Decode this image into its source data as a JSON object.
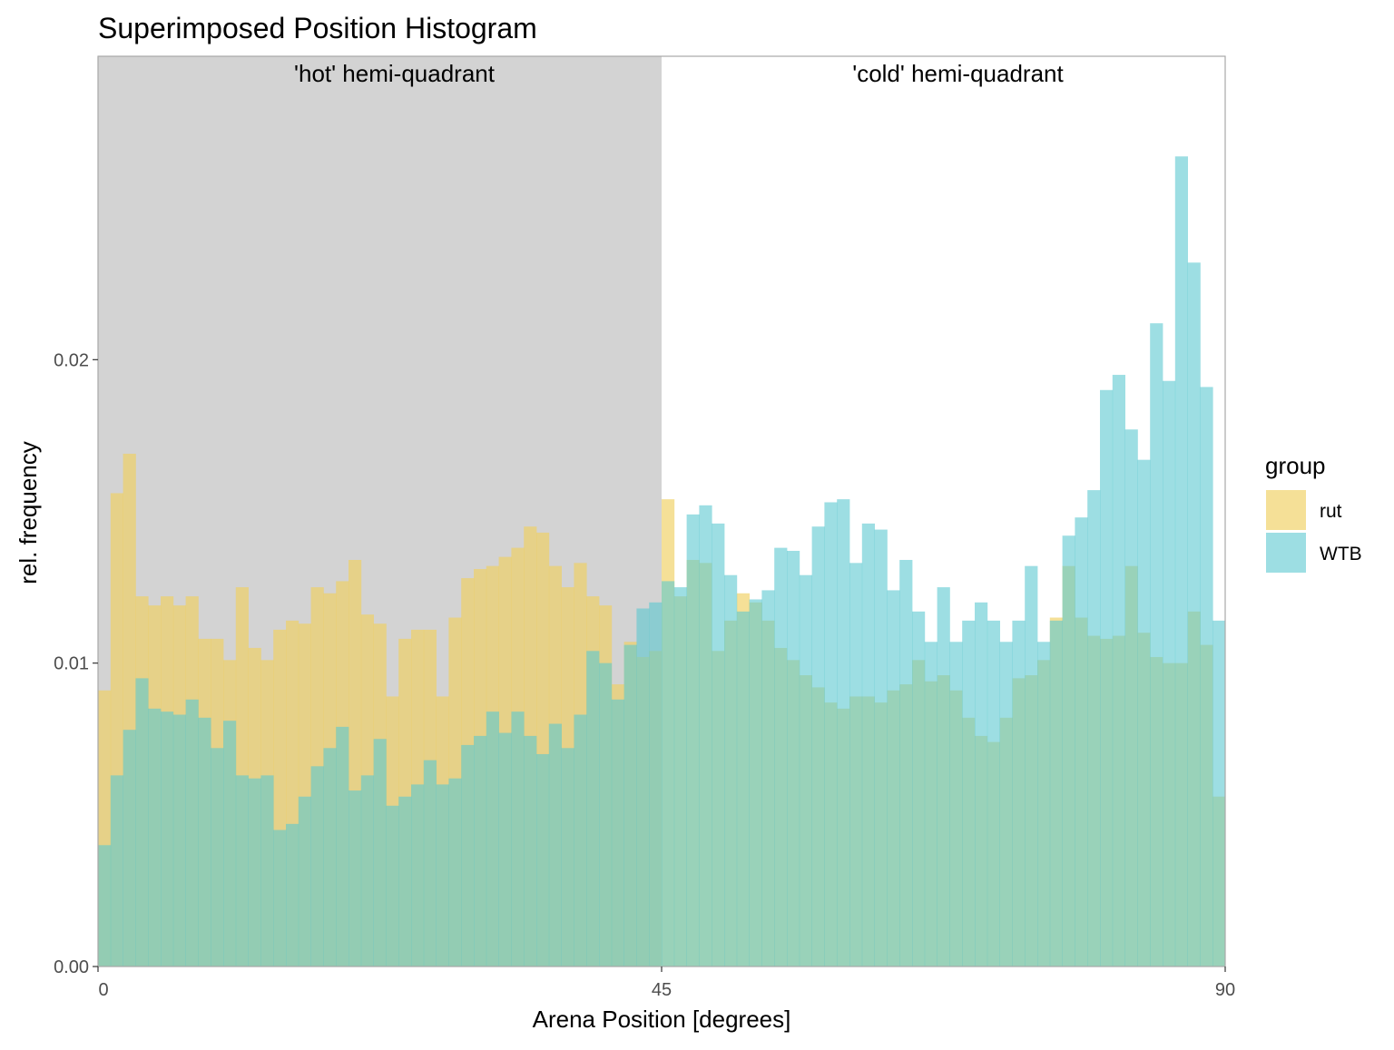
{
  "chart_data": {
    "type": "bar",
    "title": "Superimposed Position Histogram",
    "xlabel": "Arena Position [degrees]",
    "ylabel": "rel. frequency",
    "xlim": [
      0,
      90
    ],
    "ylim": [
      0,
      0.03
    ],
    "x_ticks": [
      {
        "value": 0,
        "label": "0"
      },
      {
        "value": 45,
        "label": "45"
      },
      {
        "value": 90,
        "label": "90"
      }
    ],
    "y_ticks": [
      {
        "value": 0.0,
        "label": "0.00"
      },
      {
        "value": 0.01,
        "label": "0.01"
      },
      {
        "value": 0.02,
        "label": "0.02"
      }
    ],
    "grid": false,
    "bin_width": 1,
    "bin_starts": [
      0,
      1,
      2,
      3,
      4,
      5,
      6,
      7,
      8,
      9,
      10,
      11,
      12,
      13,
      14,
      15,
      16,
      17,
      18,
      19,
      20,
      21,
      22,
      23,
      24,
      25,
      26,
      27,
      28,
      29,
      30,
      31,
      32,
      33,
      34,
      35,
      36,
      37,
      38,
      39,
      40,
      41,
      42,
      43,
      44,
      45,
      46,
      47,
      48,
      49,
      50,
      51,
      52,
      53,
      54,
      55,
      56,
      57,
      58,
      59,
      60,
      61,
      62,
      63,
      64,
      65,
      66,
      67,
      68,
      69,
      70,
      71,
      72,
      73,
      74,
      75,
      76,
      77,
      78,
      79,
      80,
      81,
      82,
      83,
      84,
      85,
      86,
      87,
      88,
      89
    ],
    "regions": [
      {
        "x_start": 0,
        "x_end": 45,
        "label": "'hot' hemi-quadrant",
        "fill": "#d3d3d3"
      },
      {
        "x_start": 45,
        "x_end": 90,
        "label": "'cold' hemi-quadrant",
        "fill": "#ffffff"
      }
    ],
    "legend": {
      "title": "group",
      "position": "right"
    },
    "series": [
      {
        "name": "rut",
        "color": "#f0d060",
        "values": [
          0.0091,
          0.0156,
          0.0169,
          0.0122,
          0.0119,
          0.0122,
          0.0119,
          0.0122,
          0.0108,
          0.0108,
          0.0101,
          0.0125,
          0.0105,
          0.0101,
          0.0111,
          0.0114,
          0.0113,
          0.0125,
          0.0123,
          0.0127,
          0.0134,
          0.0116,
          0.0113,
          0.0089,
          0.0108,
          0.0111,
          0.0111,
          0.0089,
          0.0115,
          0.0128,
          0.0131,
          0.0132,
          0.0135,
          0.0138,
          0.0145,
          0.0143,
          0.0132,
          0.0125,
          0.0133,
          0.0122,
          0.0119,
          0.0093,
          0.0107,
          0.0102,
          0.0104,
          0.0154,
          0.0122,
          0.0134,
          0.0133,
          0.0104,
          0.0114,
          0.0123,
          0.012,
          0.0114,
          0.0105,
          0.0101,
          0.0096,
          0.0092,
          0.0087,
          0.0085,
          0.0089,
          0.0089,
          0.0087,
          0.0091,
          0.0093,
          0.0101,
          0.0094,
          0.0096,
          0.0091,
          0.0082,
          0.0076,
          0.0074,
          0.0082,
          0.0095,
          0.0096,
          0.0101,
          0.0115,
          0.0132,
          0.0115,
          0.0109,
          0.0108,
          0.0109,
          0.0132,
          0.011,
          0.0102,
          0.01,
          0.01,
          0.0117,
          0.0106,
          0.0056
        ]
      },
      {
        "name": "WTB",
        "color": "#5cc8d0",
        "values": [
          0.004,
          0.0063,
          0.0078,
          0.0095,
          0.0085,
          0.0084,
          0.0083,
          0.0088,
          0.0082,
          0.0072,
          0.0081,
          0.0063,
          0.0062,
          0.0063,
          0.0045,
          0.0047,
          0.0056,
          0.0066,
          0.0072,
          0.0079,
          0.0058,
          0.0063,
          0.0075,
          0.0053,
          0.0056,
          0.006,
          0.0068,
          0.006,
          0.0062,
          0.0073,
          0.0076,
          0.0084,
          0.0077,
          0.0084,
          0.0076,
          0.007,
          0.008,
          0.0072,
          0.0083,
          0.0104,
          0.01,
          0.0088,
          0.0106,
          0.0118,
          0.012,
          0.0127,
          0.0125,
          0.0149,
          0.0152,
          0.0146,
          0.0129,
          0.0117,
          0.0121,
          0.0124,
          0.0138,
          0.0137,
          0.0129,
          0.0145,
          0.0153,
          0.0154,
          0.0133,
          0.0146,
          0.0144,
          0.0124,
          0.0134,
          0.0117,
          0.0107,
          0.0125,
          0.0107,
          0.0114,
          0.012,
          0.0114,
          0.0107,
          0.0114,
          0.0132,
          0.0107,
          0.0114,
          0.0142,
          0.0148,
          0.0157,
          0.019,
          0.0195,
          0.0177,
          0.0167,
          0.0212,
          0.0193,
          0.0267,
          0.0232,
          0.0191,
          0.0114
        ]
      }
    ]
  }
}
